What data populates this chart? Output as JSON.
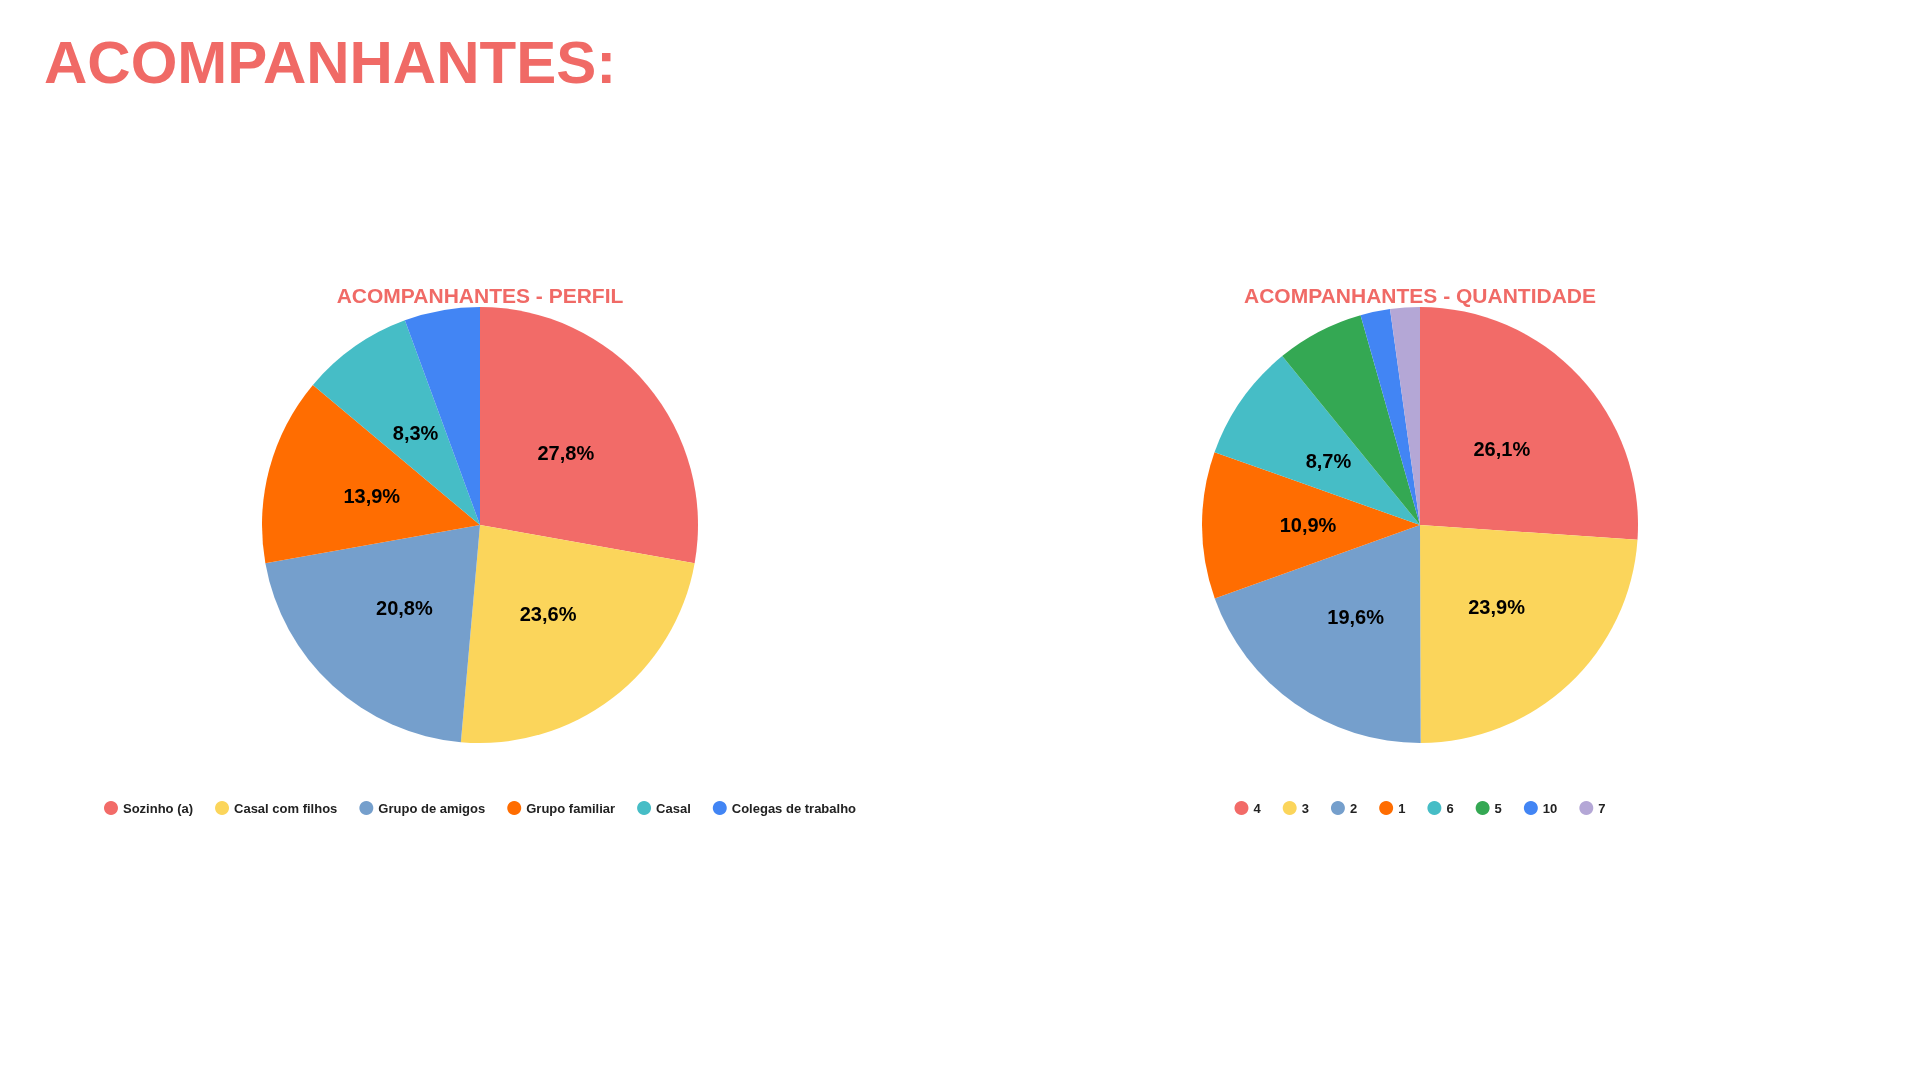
{
  "chart_data": [
    {
      "type": "other",
      "title": "ACOMPANHANTES:"
    },
    {
      "type": "pie",
      "title": "ACOMPANHANTES - PERFIL",
      "categories": [
        "Sozinho (a)",
        "Casal com filhos",
        "Grupo de amigos",
        "Grupo familiar",
        "Casal",
        "Colegas de trabalho"
      ],
      "values": [
        27.8,
        23.6,
        20.8,
        13.9,
        8.3,
        5.6
      ],
      "value_labels": [
        "27,8%",
        "23,6%",
        "20,8%",
        "13,9%",
        "8,3%",
        null
      ],
      "colors": [
        "#f26b68",
        "#fbd55b",
        "#759fcc",
        "#ff6d01",
        "#46bdc6",
        "#4285f4"
      ],
      "legend": "bottom"
    },
    {
      "type": "pie",
      "title": "ACOMPANHANTES - QUANTIDADE",
      "categories": [
        "4",
        "3",
        "2",
        "1",
        "6",
        "5",
        "10",
        "7"
      ],
      "values": [
        26.1,
        23.9,
        19.6,
        10.9,
        8.7,
        6.5,
        2.2,
        2.2
      ],
      "value_labels": [
        "26,1%",
        "23,9%",
        "19,6%",
        "10,9%",
        "8,7%",
        null,
        null,
        null
      ],
      "colors": [
        "#f26b68",
        "#fbd55b",
        "#759fcc",
        "#ff6d01",
        "#46bdc6",
        "#34a853",
        "#4285f4",
        "#b4a7d6"
      ],
      "legend": "bottom"
    }
  ]
}
